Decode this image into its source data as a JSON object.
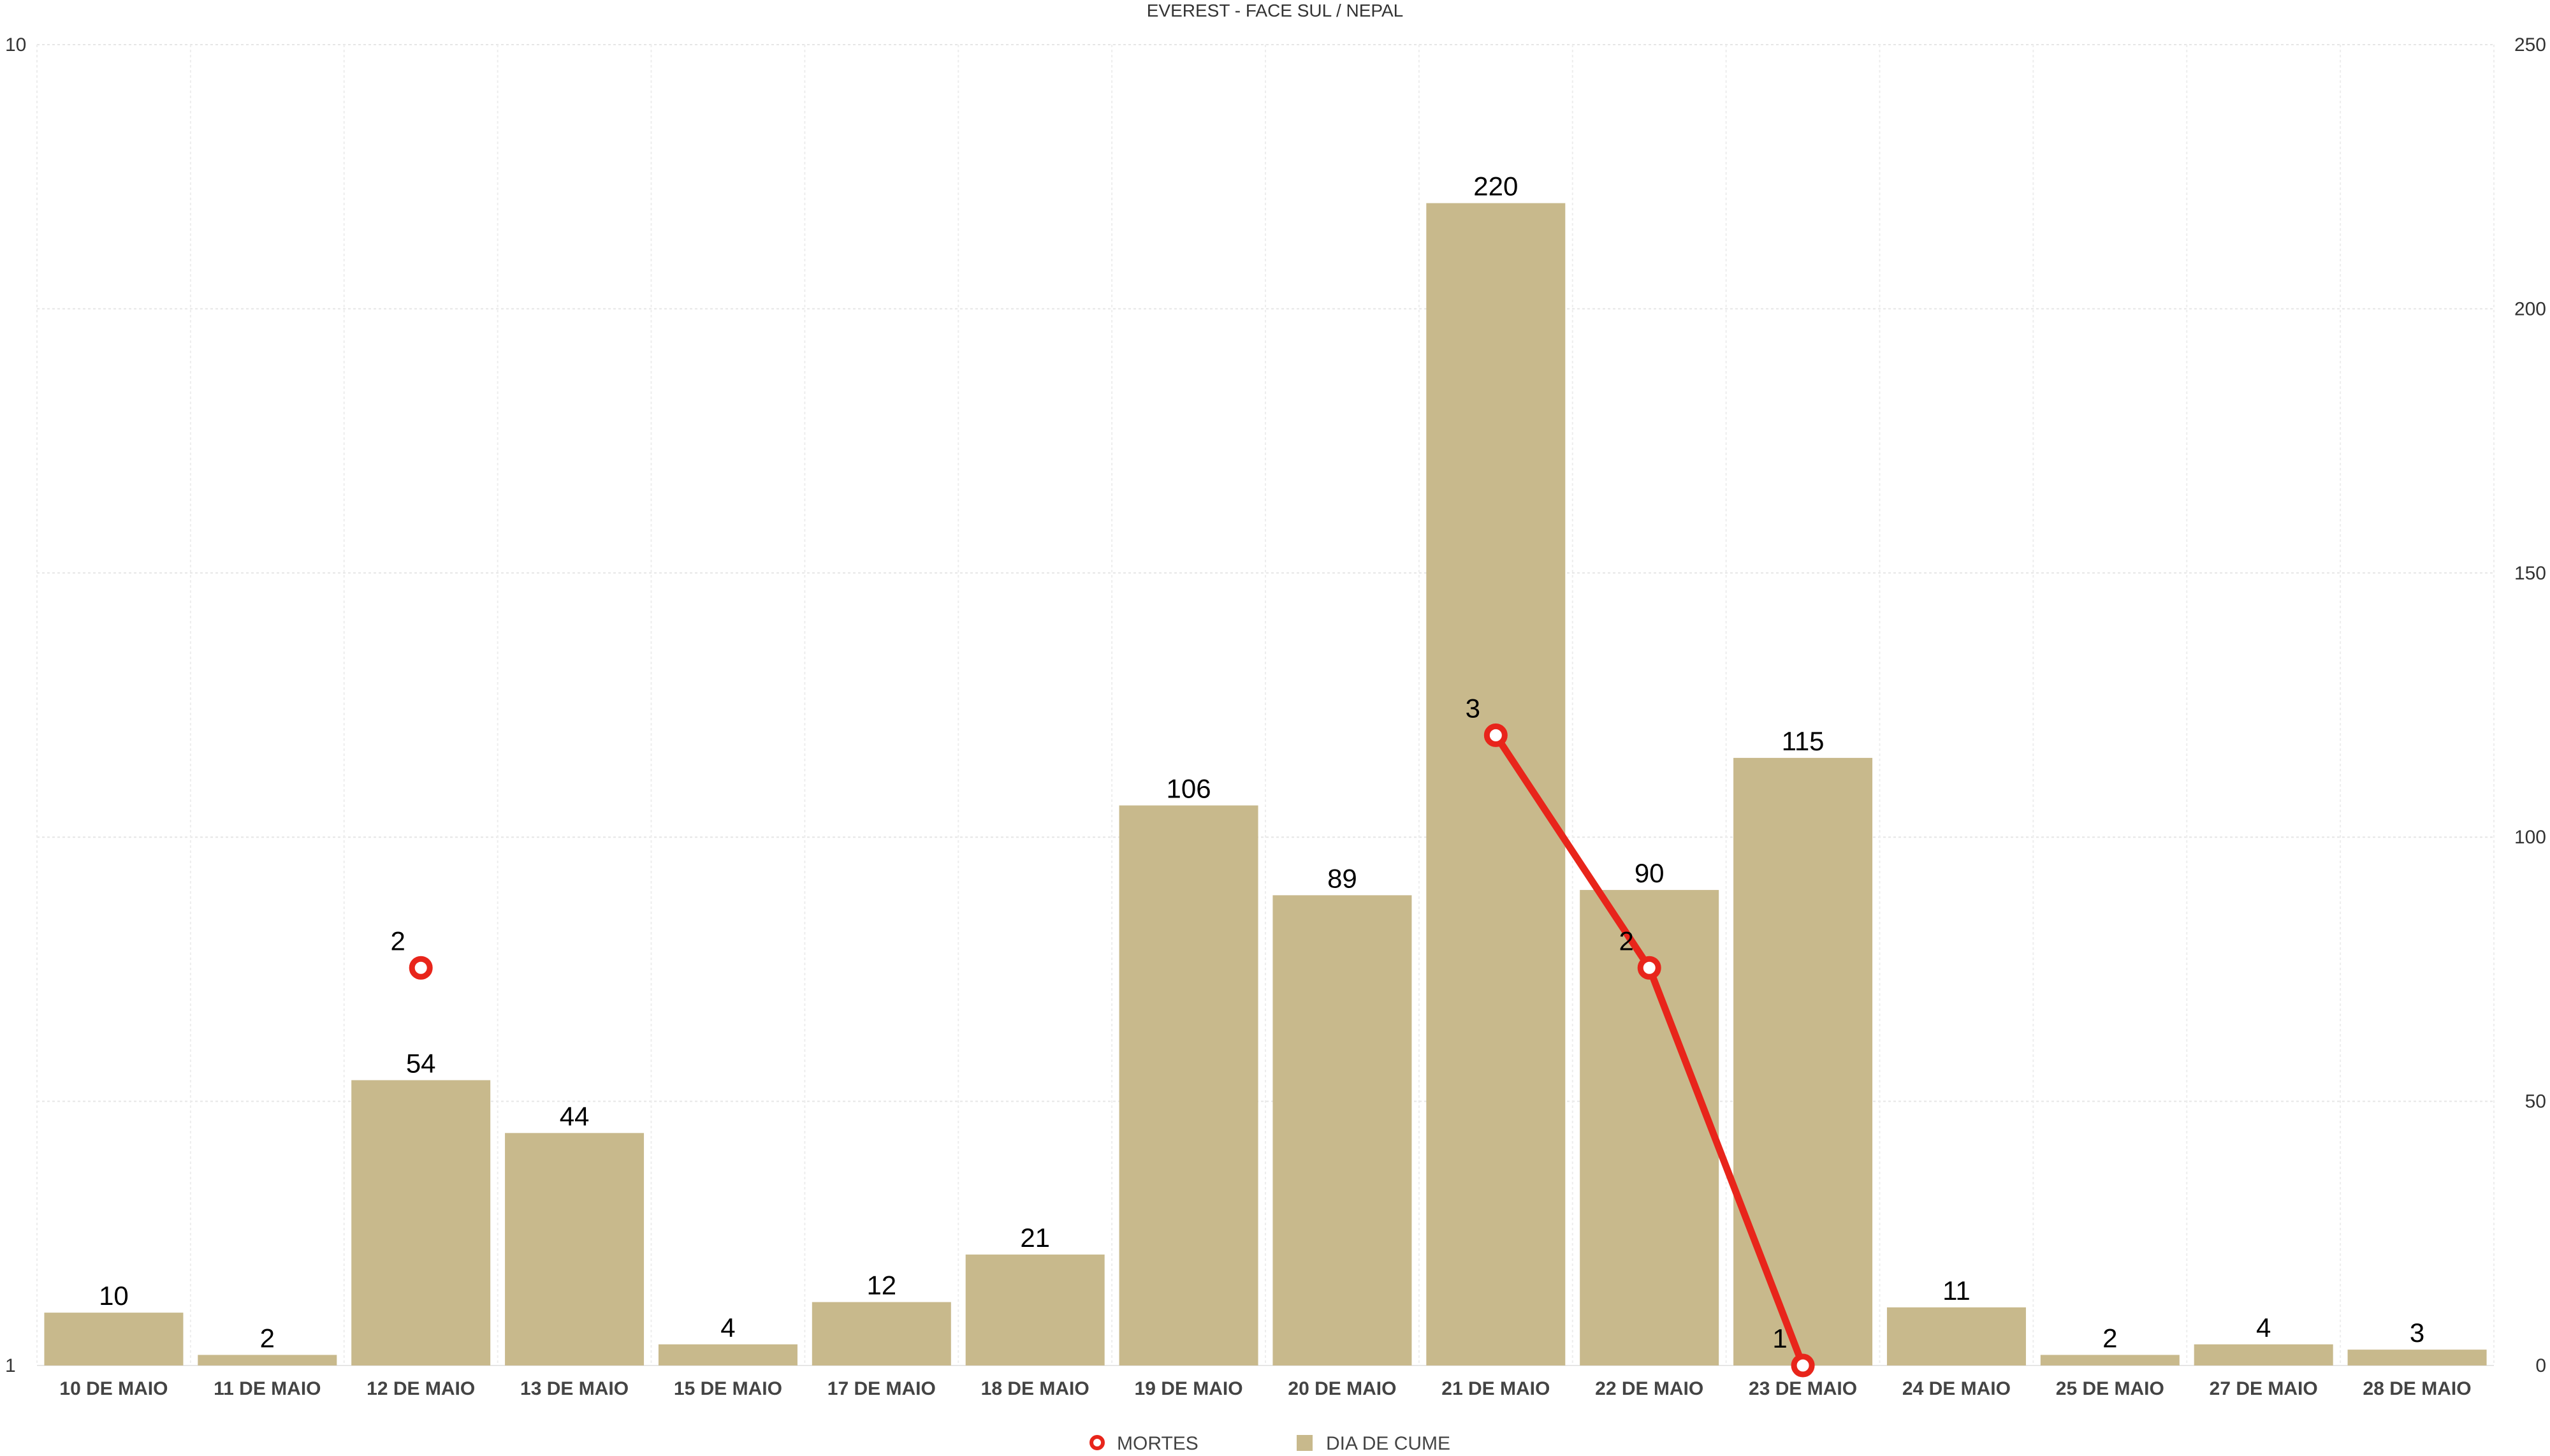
{
  "chart_data": {
    "type": "bar",
    "title": "EVEREST - FACE SUL / NEPAL",
    "categories": [
      "10 DE MAIO",
      "11 DE MAIO",
      "12 DE MAIO",
      "13 DE MAIO",
      "15 DE MAIO",
      "17 DE MAIO",
      "18 DE MAIO",
      "19 DE MAIO",
      "20 DE MAIO",
      "21 DE MAIO",
      "22 DE MAIO",
      "23 DE MAIO",
      "24 DE MAIO",
      "25 DE MAIO",
      "27 DE MAIO",
      "28 DE MAIO"
    ],
    "series": [
      {
        "name": "DIA DE CUME",
        "type": "bar",
        "axis": "right",
        "color": "#c8b98c",
        "values": [
          10,
          2,
          54,
          44,
          4,
          12,
          21,
          106,
          89,
          220,
          90,
          115,
          11,
          2,
          4,
          3
        ]
      },
      {
        "name": "MORTES",
        "type": "line",
        "axis": "left",
        "color": "#e8251b",
        "values": [
          null,
          null,
          2,
          null,
          null,
          null,
          null,
          null,
          null,
          3,
          2,
          1,
          null,
          null,
          null,
          null
        ]
      }
    ],
    "left_axis": {
      "scale": "log",
      "range": [
        1,
        10
      ],
      "ticks": [
        "1",
        "10"
      ]
    },
    "right_axis": {
      "scale": "linear",
      "range": [
        0,
        250
      ],
      "ticks": [
        "0",
        "50",
        "100",
        "150",
        "200",
        "250"
      ]
    },
    "grid": true,
    "legend": {
      "position": "bottom",
      "items": [
        "MORTES",
        "DIA DE CUME"
      ]
    }
  }
}
